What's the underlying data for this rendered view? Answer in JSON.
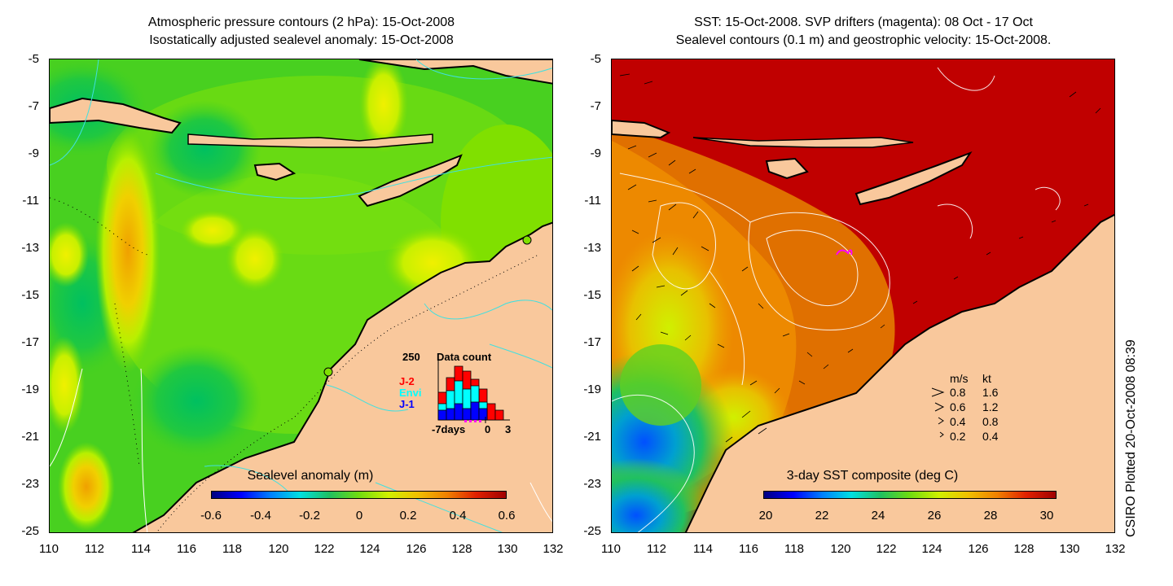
{
  "left_panel": {
    "title_line1": "Atmospheric pressure contours (2 hPa): 15-Oct-2008",
    "title_line2": "Isostatically adjusted sealevel anomaly: 15-Oct-2008",
    "colorbar_title": "Sealevel anomaly (m)",
    "colorbar_ticks": [
      "-0.6",
      "-0.4",
      "-0.2",
      "0",
      "0.2",
      "0.4",
      "0.6"
    ],
    "inset": {
      "title": "Data count",
      "y_max": "250",
      "series": [
        {
          "name": "J-2",
          "color": "#ff0000"
        },
        {
          "name": "Envi",
          "color": "#00ffff"
        },
        {
          "name": "J-1",
          "color": "#0000ff"
        }
      ],
      "x_left": "-7days",
      "x_mid": "0",
      "x_right": "3"
    }
  },
  "right_panel": {
    "title_line1": "SST: 15-Oct-2008. SVP drifters (magenta): 08 Oct - 17 Oct",
    "title_line2": "Sealevel contours (0.1 m) and geostrophic velocity: 15-Oct-2008.",
    "colorbar_title": "3-day SST composite (deg C)",
    "colorbar_ticks": [
      "20",
      "22",
      "24",
      "26",
      "28",
      "30"
    ],
    "velocity_legend": {
      "header_ms": "m/s",
      "header_kt": "kt",
      "rows": [
        {
          "ms": "0.8",
          "kt": "1.6"
        },
        {
          "ms": "0.6",
          "kt": "1.2"
        },
        {
          "ms": "0.4",
          "kt": "0.8"
        },
        {
          "ms": "0.2",
          "kt": "0.4"
        }
      ]
    }
  },
  "y_ticks": [
    "-5",
    "-7",
    "-9",
    "-11",
    "-13",
    "-15",
    "-17",
    "-19",
    "-21",
    "-23",
    "-25"
  ],
  "x_ticks": [
    "110",
    "112",
    "114",
    "116",
    "118",
    "120",
    "122",
    "124",
    "126",
    "128",
    "130",
    "132"
  ],
  "credit": "CSIRO Plotted 20-Oct-2008 08:39",
  "colors": {
    "land": "#f9c89c",
    "sla_base": "#7fe000",
    "sst_base": "#c00000",
    "contour_cyan": "#40e0e0",
    "drifter_magenta": "#ff00ff"
  }
}
